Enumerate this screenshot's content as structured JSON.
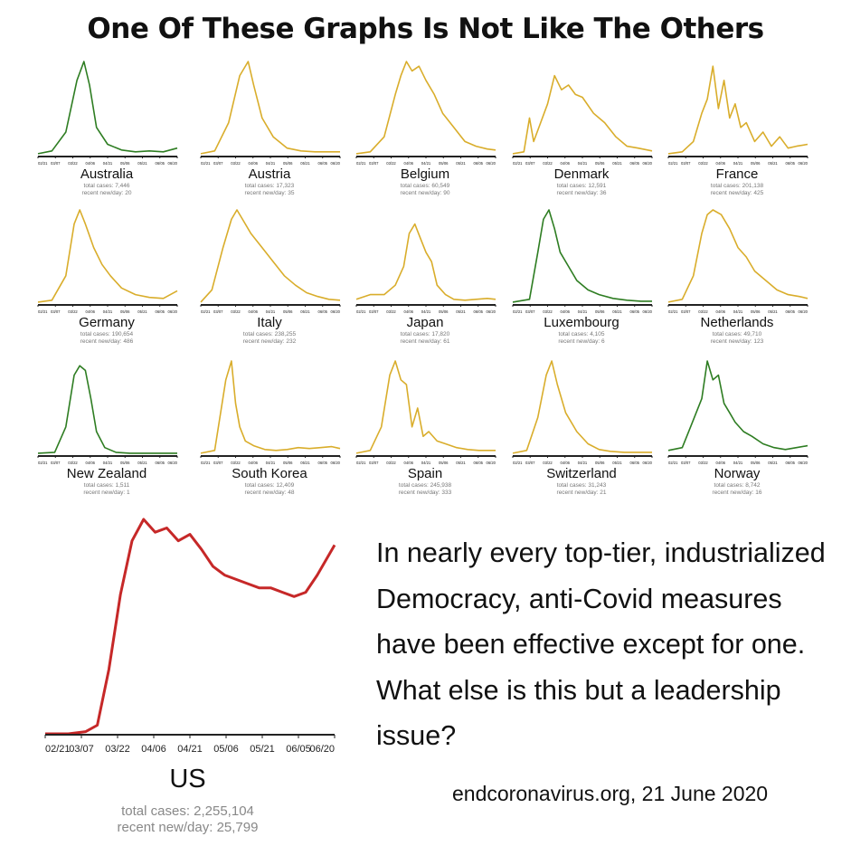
{
  "title": "One Of These Graphs Is Not Like The Others",
  "blurb": "In nearly every top-tier, industrialized Democracy, anti-Covid measures have been effective except for one. What else is this but a leadership issue?",
  "source": "endcoronavirus.org, 21 June 2020",
  "colors": {
    "green": "#2e7d22",
    "yellow": "#d9ad2b",
    "red": "#c62828",
    "axis": "#222222",
    "stat": "#777777"
  },
  "tick_labels": [
    "02/21",
    "03/07",
    "03/22",
    "04/06",
    "04/21",
    "05/06",
    "05/21",
    "06/05",
    "06/20"
  ],
  "chart_data": [
    {
      "type": "line",
      "country": "Australia",
      "color": "green",
      "total_cases": "total cases: 7,446",
      "recent": "recent new/day: 20",
      "x": [
        0,
        10,
        20,
        28,
        33,
        37,
        42,
        50,
        60,
        70,
        80,
        90,
        100
      ],
      "y": [
        0.02,
        0.05,
        0.25,
        0.8,
        1.0,
        0.75,
        0.3,
        0.12,
        0.06,
        0.04,
        0.05,
        0.04,
        0.08
      ]
    },
    {
      "type": "line",
      "country": "Austria",
      "color": "yellow",
      "total_cases": "total cases: 17,323",
      "recent": "recent new/day: 35",
      "x": [
        0,
        10,
        20,
        28,
        34,
        38,
        44,
        52,
        62,
        72,
        82,
        90,
        100
      ],
      "y": [
        0.02,
        0.05,
        0.35,
        0.85,
        1.0,
        0.75,
        0.4,
        0.2,
        0.08,
        0.05,
        0.04,
        0.04,
        0.04
      ]
    },
    {
      "type": "line",
      "country": "Belgium",
      "color": "yellow",
      "total_cases": "total cases: 60,549",
      "recent": "recent new/day: 90",
      "x": [
        0,
        10,
        20,
        28,
        32,
        36,
        40,
        45,
        50,
        56,
        62,
        70,
        78,
        86,
        94,
        100
      ],
      "y": [
        0.02,
        0.04,
        0.2,
        0.65,
        0.85,
        1.0,
        0.9,
        0.95,
        0.8,
        0.65,
        0.45,
        0.3,
        0.15,
        0.1,
        0.07,
        0.06
      ]
    },
    {
      "type": "line",
      "country": "Denmark",
      "color": "yellow",
      "total_cases": "total cases: 12,591",
      "recent": "recent new/day: 36",
      "x": [
        0,
        8,
        12,
        15,
        20,
        25,
        30,
        35,
        40,
        45,
        50,
        58,
        66,
        74,
        82,
        90,
        100
      ],
      "y": [
        0.02,
        0.04,
        0.4,
        0.15,
        0.35,
        0.55,
        0.85,
        0.7,
        0.75,
        0.65,
        0.62,
        0.45,
        0.35,
        0.2,
        0.1,
        0.08,
        0.05
      ]
    },
    {
      "type": "line",
      "country": "France",
      "color": "yellow",
      "total_cases": "total cases: 201,138",
      "recent": "recent new/day: 425",
      "x": [
        0,
        10,
        18,
        24,
        28,
        32,
        36,
        40,
        44,
        48,
        52,
        56,
        62,
        68,
        74,
        80,
        86,
        92,
        100
      ],
      "y": [
        0.02,
        0.04,
        0.15,
        0.45,
        0.6,
        0.95,
        0.5,
        0.8,
        0.4,
        0.55,
        0.3,
        0.35,
        0.15,
        0.25,
        0.1,
        0.2,
        0.08,
        0.1,
        0.12
      ]
    },
    {
      "type": "line",
      "country": "Germany",
      "color": "yellow",
      "total_cases": "total cases: 190,654",
      "recent": "recent new/day: 486",
      "x": [
        0,
        10,
        20,
        26,
        30,
        34,
        40,
        46,
        52,
        60,
        70,
        80,
        90,
        100
      ],
      "y": [
        0.02,
        0.04,
        0.3,
        0.85,
        1.0,
        0.85,
        0.6,
        0.42,
        0.3,
        0.17,
        0.1,
        0.07,
        0.06,
        0.14
      ]
    },
    {
      "type": "line",
      "country": "Italy",
      "color": "yellow",
      "total_cases": "total cases: 238,255",
      "recent": "recent new/day: 232",
      "x": [
        0,
        8,
        16,
        22,
        26,
        30,
        36,
        44,
        52,
        60,
        68,
        76,
        84,
        92,
        100
      ],
      "y": [
        0.02,
        0.15,
        0.6,
        0.9,
        1.0,
        0.9,
        0.75,
        0.6,
        0.45,
        0.3,
        0.2,
        0.12,
        0.08,
        0.05,
        0.04
      ]
    },
    {
      "type": "line",
      "country": "Japan",
      "color": "yellow",
      "total_cases": "total cases: 17,820",
      "recent": "recent new/day: 61",
      "x": [
        0,
        10,
        20,
        28,
        34,
        38,
        42,
        46,
        50,
        54,
        58,
        64,
        70,
        78,
        86,
        94,
        100
      ],
      "y": [
        0.05,
        0.1,
        0.1,
        0.2,
        0.4,
        0.75,
        0.85,
        0.7,
        0.55,
        0.45,
        0.2,
        0.1,
        0.05,
        0.04,
        0.05,
        0.06,
        0.05
      ]
    },
    {
      "type": "line",
      "country": "Luxembourg",
      "color": "green",
      "total_cases": "total cases: 4,105",
      "recent": "recent new/day: 6",
      "x": [
        0,
        12,
        18,
        22,
        26,
        30,
        34,
        40,
        46,
        54,
        62,
        72,
        82,
        92,
        100
      ],
      "y": [
        0.02,
        0.05,
        0.55,
        0.9,
        1.0,
        0.8,
        0.55,
        0.4,
        0.25,
        0.15,
        0.1,
        0.06,
        0.04,
        0.03,
        0.03
      ]
    },
    {
      "type": "line",
      "country": "Netherlands",
      "color": "yellow",
      "total_cases": "total cases: 49,710",
      "recent": "recent new/day: 123",
      "x": [
        0,
        10,
        18,
        24,
        28,
        32,
        38,
        44,
        50,
        56,
        62,
        70,
        78,
        86,
        94,
        100
      ],
      "y": [
        0.02,
        0.05,
        0.3,
        0.75,
        0.95,
        1.0,
        0.95,
        0.8,
        0.6,
        0.5,
        0.35,
        0.25,
        0.15,
        0.1,
        0.08,
        0.06
      ]
    },
    {
      "type": "line",
      "country": "New Zealand",
      "color": "green",
      "total_cases": "total cases: 1,511",
      "recent": "recent new/day: 1",
      "x": [
        0,
        12,
        20,
        26,
        30,
        34,
        38,
        42,
        48,
        56,
        66,
        76,
        86,
        100
      ],
      "y": [
        0.02,
        0.03,
        0.3,
        0.85,
        0.95,
        0.9,
        0.6,
        0.25,
        0.08,
        0.03,
        0.02,
        0.02,
        0.02,
        0.02
      ]
    },
    {
      "type": "line",
      "country": "South Korea",
      "color": "yellow",
      "total_cases": "total cases: 12,409",
      "recent": "recent new/day: 48",
      "x": [
        0,
        10,
        18,
        22,
        25,
        28,
        32,
        38,
        46,
        54,
        62,
        70,
        78,
        86,
        94,
        100
      ],
      "y": [
        0.02,
        0.05,
        0.8,
        1.0,
        0.55,
        0.3,
        0.15,
        0.1,
        0.06,
        0.05,
        0.06,
        0.08,
        0.07,
        0.08,
        0.09,
        0.07
      ]
    },
    {
      "type": "line",
      "country": "Spain",
      "color": "yellow",
      "total_cases": "total cases: 245,938",
      "recent": "recent new/day: 333",
      "x": [
        0,
        10,
        18,
        24,
        28,
        32,
        36,
        40,
        44,
        48,
        52,
        58,
        64,
        72,
        80,
        88,
        100
      ],
      "y": [
        0.02,
        0.05,
        0.3,
        0.85,
        1.0,
        0.8,
        0.75,
        0.3,
        0.5,
        0.2,
        0.25,
        0.15,
        0.12,
        0.08,
        0.06,
        0.05,
        0.05
      ]
    },
    {
      "type": "line",
      "country": "Switzerland",
      "color": "yellow",
      "total_cases": "total cases: 31,243",
      "recent": "recent new/day: 21",
      "x": [
        0,
        10,
        18,
        24,
        28,
        32,
        38,
        46,
        54,
        62,
        70,
        80,
        90,
        100
      ],
      "y": [
        0.02,
        0.05,
        0.4,
        0.85,
        1.0,
        0.75,
        0.45,
        0.25,
        0.12,
        0.06,
        0.04,
        0.03,
        0.03,
        0.03
      ]
    },
    {
      "type": "line",
      "country": "Norway",
      "color": "green",
      "total_cases": "total cases: 8,742",
      "recent": "recent new/day: 16",
      "x": [
        0,
        10,
        16,
        20,
        24,
        28,
        32,
        36,
        40,
        44,
        48,
        54,
        60,
        68,
        76,
        84,
        92,
        100
      ],
      "y": [
        0.05,
        0.08,
        0.3,
        0.45,
        0.6,
        1.0,
        0.8,
        0.85,
        0.55,
        0.45,
        0.35,
        0.25,
        0.2,
        0.12,
        0.08,
        0.06,
        0.08,
        0.1
      ]
    }
  ],
  "us": {
    "type": "line",
    "country": "US",
    "color": "red",
    "total_cases": "total cases: 2,255,104",
    "recent": "recent new/day: 25,799",
    "x": [
      0,
      8,
      14,
      18,
      22,
      26,
      30,
      34,
      38,
      42,
      46,
      50,
      54,
      58,
      62,
      66,
      70,
      74,
      78,
      82,
      86,
      90,
      94,
      100
    ],
    "y": [
      0.0,
      0.0,
      0.01,
      0.04,
      0.3,
      0.65,
      0.9,
      1.0,
      0.94,
      0.96,
      0.9,
      0.93,
      0.86,
      0.78,
      0.74,
      0.72,
      0.7,
      0.68,
      0.68,
      0.66,
      0.64,
      0.66,
      0.74,
      0.88
    ]
  }
}
